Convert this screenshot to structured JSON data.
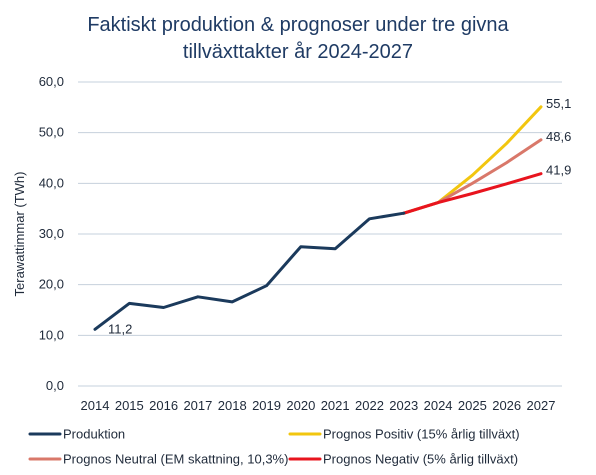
{
  "chart_data": {
    "type": "line",
    "title_line1": "Faktiskt produktion & prognoser under tre givna",
    "title_line2": "tillväxttakter år 2024-2027",
    "ylabel": "Terawattimmar (TWh)",
    "xlabel": "",
    "ylim": [
      0,
      60
    ],
    "yticks": [
      "0,0",
      "10,0",
      "20,0",
      "30,0",
      "40,0",
      "50,0",
      "60,0"
    ],
    "x": [
      2014,
      2015,
      2016,
      2017,
      2018,
      2019,
      2020,
      2021,
      2022,
      2023,
      2024,
      2025,
      2026,
      2027
    ],
    "grid": true,
    "legend_position": "bottom",
    "series": [
      {
        "name": "Produktion",
        "color": "#1b3a5c",
        "x": [
          2014,
          2015,
          2016,
          2017,
          2018,
          2019,
          2020,
          2021,
          2022,
          2023
        ],
        "values": [
          11.2,
          16.3,
          15.5,
          17.6,
          16.6,
          19.8,
          27.5,
          27.1,
          33.0,
          34.1
        ]
      },
      {
        "name": "Prognos Positiv (15% årlig tillväxt)",
        "color": "#f2c60f",
        "x": [
          2023,
          2024,
          2025,
          2026,
          2027
        ],
        "values": [
          34.1,
          36.2,
          41.6,
          47.9,
          55.1
        ]
      },
      {
        "name": "Prognos Neutral (EM skattning, 10,3%)",
        "color": "#d9786a",
        "x": [
          2023,
          2024,
          2025,
          2026,
          2027
        ],
        "values": [
          34.1,
          36.2,
          40.0,
          44.1,
          48.6
        ]
      },
      {
        "name": "Prognos Negativ (5% årlig tillväxt)",
        "color": "#e8141e",
        "x": [
          2023,
          2024,
          2025,
          2026,
          2027
        ],
        "values": [
          34.1,
          36.2,
          38.0,
          39.9,
          41.9
        ]
      }
    ],
    "data_labels": [
      {
        "text": "11,2",
        "series": 0,
        "index": 0
      },
      {
        "text": "55,1",
        "series": 1,
        "index": 4
      },
      {
        "text": "48,6",
        "series": 2,
        "index": 4
      },
      {
        "text": "41,9",
        "series": 3,
        "index": 4
      }
    ],
    "gridline_color": "#c6d0dc"
  }
}
